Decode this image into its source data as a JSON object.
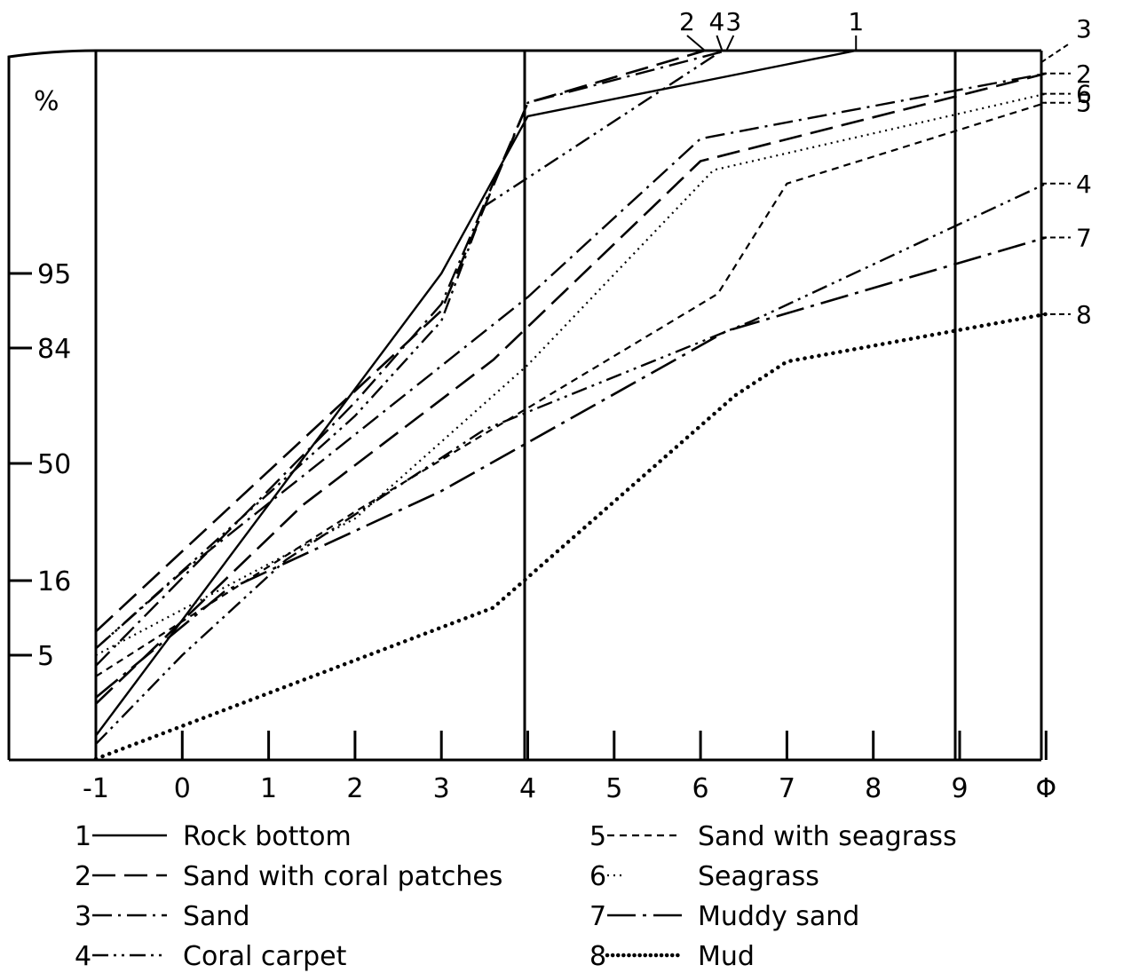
{
  "chart_data": {
    "type": "line",
    "ylabel": "%",
    "xlabel": "Φ",
    "x_ticks": [
      "-1",
      "0",
      "1",
      "2",
      "3",
      "4",
      "5",
      "6",
      "7",
      "8",
      "9",
      "Φ"
    ],
    "y_ticks": [
      {
        "label": "95",
        "value": 95
      },
      {
        "label": "84",
        "value": 84
      },
      {
        "label": "50",
        "value": 50
      },
      {
        "label": "16",
        "value": 16
      },
      {
        "label": "5",
        "value": 5
      }
    ],
    "xlim": [
      -1,
      10
    ],
    "grid": false,
    "legend_position": "bottom",
    "series": [
      {
        "id": "1",
        "name": "Rock bottom",
        "dash": "solid",
        "points": [
          [
            -1,
            1.2
          ],
          [
            3,
            95.0
          ],
          [
            4,
            98.5
          ],
          [
            7.8,
            99.96
          ]
        ]
      },
      {
        "id": "2",
        "name": "Sand with coral patches",
        "dash": "long-dash",
        "points": [
          [
            -1,
            8.5
          ],
          [
            3,
            89.5
          ],
          [
            4,
            98.8
          ],
          [
            6.05,
            99.96
          ]
        ]
      },
      {
        "id": "3",
        "name": "Sand",
        "dash": "dash-dot",
        "points": [
          [
            -1,
            4.5
          ],
          [
            2,
            68.0
          ],
          [
            3,
            90.5
          ],
          [
            4,
            98.8
          ],
          [
            6.3,
            99.96
          ]
        ]
      },
      {
        "id": "4",
        "name": "Coral carpet",
        "dash": "dash-dot-dot",
        "points": [
          [
            -1,
            6.0
          ],
          [
            2,
            64.0
          ],
          [
            3,
            88.0
          ],
          [
            3.5,
            96.5
          ],
          [
            6.25,
            99.96
          ]
        ]
      },
      {
        "id": "2",
        "name": "Sand with coral patches",
        "dash": "long-dash",
        "points": [
          [
            -1,
            2.7
          ],
          [
            1.4,
            38.0
          ],
          [
            3.6,
            80.5
          ],
          [
            6,
            97.5
          ],
          [
            10,
            99.45
          ]
        ]
      },
      {
        "id": "3",
        "name": "Sand",
        "dash": "dash-dot",
        "points": [
          [
            -1,
            6.0
          ],
          [
            0,
            18.5
          ],
          [
            4,
            91.5
          ],
          [
            6,
            98.0
          ],
          [
            10,
            99.45
          ]
        ]
      },
      {
        "id": "6",
        "name": "Seagrass",
        "dash": "dotted-fine",
        "points": [
          [
            -1,
            5.0
          ],
          [
            2,
            34.0
          ],
          [
            4,
            79.0
          ],
          [
            6.15,
            97.3
          ],
          [
            10,
            99.0
          ]
        ]
      },
      {
        "id": "5",
        "name": "Sand with seagrass",
        "dash": "short-dash",
        "points": [
          [
            -1,
            4.0
          ],
          [
            2,
            36.0
          ],
          [
            6.2,
            92.0
          ],
          [
            7,
            97.0
          ],
          [
            10,
            98.8
          ]
        ]
      },
      {
        "id": "4",
        "name": "Coral carpet",
        "dash": "dash-dot-dot",
        "points": [
          [
            -1,
            0.8
          ],
          [
            0,
            5.0
          ],
          [
            1.2,
            22.0
          ],
          [
            3.5,
            60.0
          ],
          [
            6.6,
            88.0
          ],
          [
            10,
            97.0
          ]
        ]
      },
      {
        "id": "7",
        "name": "Muddy sand",
        "dash": "long-dash-dot",
        "points": [
          [
            -1,
            3.0
          ],
          [
            0.5,
            14.5
          ],
          [
            3,
            42.0
          ],
          [
            6.3,
            86.5
          ],
          [
            10,
            95.8
          ]
        ]
      },
      {
        "id": "8",
        "name": "Mud",
        "dash": "heavy-dots",
        "points": [
          [
            -1,
            0.1
          ],
          [
            3.6,
            12.0
          ],
          [
            6.4,
            70.0
          ],
          [
            7,
            80.0
          ],
          [
            10,
            89.0
          ]
        ]
      }
    ],
    "end_labels": [
      {
        "text": "2",
        "x": 6.05,
        "side": "top"
      },
      {
        "text": "4",
        "x": 6.25,
        "side": "top"
      },
      {
        "text": "3",
        "x": 6.3,
        "side": "top"
      },
      {
        "text": "1",
        "x": 7.8,
        "side": "top"
      },
      {
        "text": "3",
        "y": 99.7,
        "side": "right"
      },
      {
        "text": "2",
        "y": 99.45,
        "side": "right"
      },
      {
        "text": "6",
        "y": 99.0,
        "side": "right"
      },
      {
        "text": "5",
        "y": 98.8,
        "side": "right"
      },
      {
        "text": "4",
        "y": 97.0,
        "side": "right"
      },
      {
        "text": "7",
        "y": 95.8,
        "side": "right"
      },
      {
        "text": "8",
        "y": 89.0,
        "side": "right"
      }
    ],
    "legend": [
      {
        "id": "1",
        "key": "1",
        "name": "Rock bottom",
        "dash": "solid"
      },
      {
        "id": "2",
        "key": "2",
        "name": "Sand with coral patches",
        "dash": "long-dash"
      },
      {
        "id": "3",
        "key": "3",
        "name": "Sand",
        "dash": "dash-dot"
      },
      {
        "id": "4",
        "key": "4",
        "name": "Coral carpet",
        "dash": "dash-dot-dot"
      },
      {
        "id": "5",
        "key": "5",
        "name": "Sand with seagrass",
        "dash": "short-dash"
      },
      {
        "id": "6",
        "key": "6",
        "name": "Seagrass",
        "dash": "dotted-fine"
      },
      {
        "id": "7",
        "key": "7",
        "name": "Muddy sand",
        "dash": "long-dash-dot"
      },
      {
        "id": "8",
        "key": "8",
        "name": "Mud",
        "dash": "heavy-dots"
      }
    ]
  }
}
